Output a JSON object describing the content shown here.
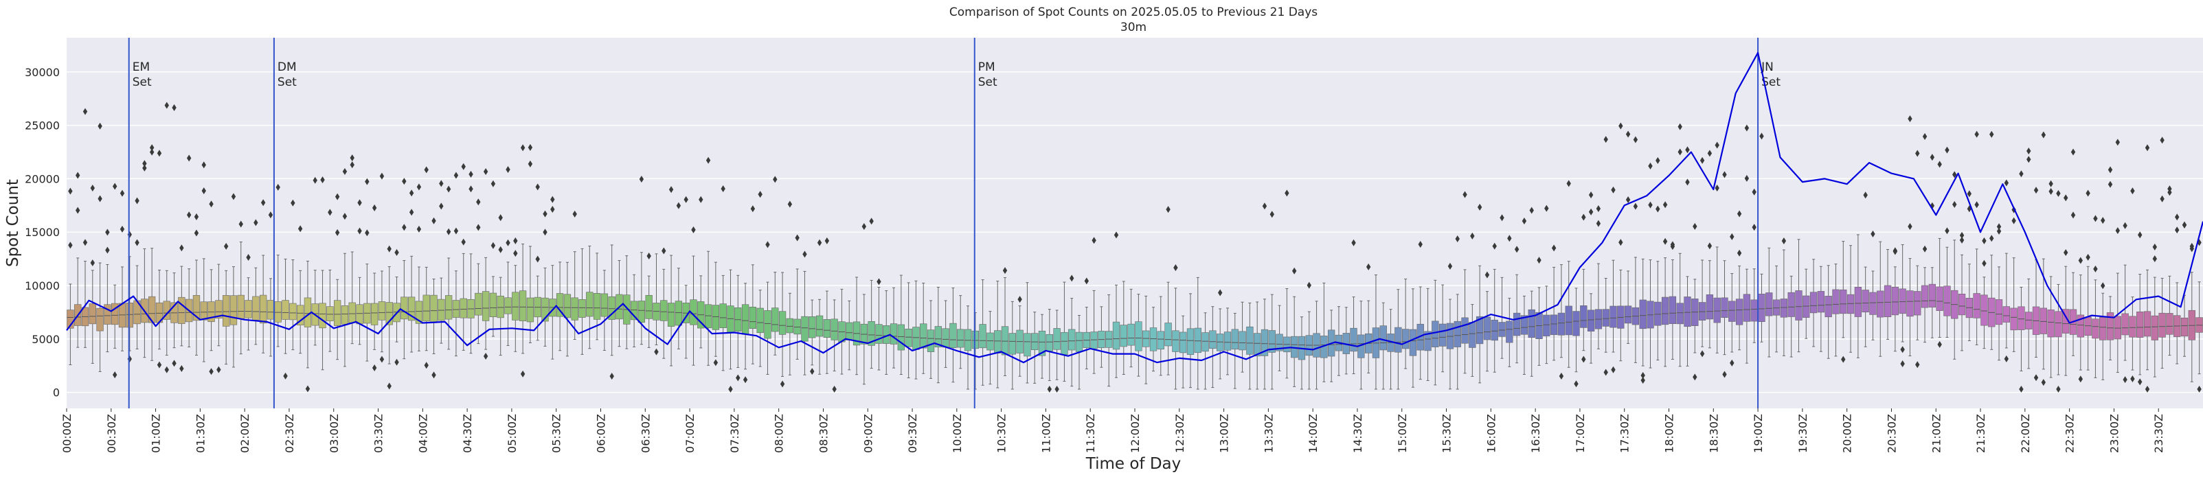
{
  "chart_data": {
    "type": "boxplot+line",
    "title": "Comparison of Spot Counts on 2025.05.05 to Previous 21 Days",
    "subtitle": "30m",
    "xlabel": "Time of Day",
    "ylabel": "Spot Count",
    "ylim": [
      -1500,
      33200
    ],
    "yticks": [
      0,
      5000,
      10000,
      15000,
      20000,
      25000,
      30000
    ],
    "xlim_hours": [
      0,
      24
    ],
    "xticks": [
      "00:00Z",
      "00:30Z",
      "01:00Z",
      "01:30Z",
      "02:00Z",
      "02:30Z",
      "03:00Z",
      "03:30Z",
      "04:00Z",
      "04:30Z",
      "05:00Z",
      "05:30Z",
      "06:00Z",
      "06:30Z",
      "07:00Z",
      "07:30Z",
      "08:00Z",
      "08:30Z",
      "09:00Z",
      "09:30Z",
      "10:00Z",
      "10:30Z",
      "11:00Z",
      "11:30Z",
      "12:00Z",
      "12:30Z",
      "13:00Z",
      "13:30Z",
      "14:00Z",
      "14:30Z",
      "15:00Z",
      "15:30Z",
      "16:00Z",
      "16:30Z",
      "17:00Z",
      "17:30Z",
      "18:00Z",
      "18:30Z",
      "19:00Z",
      "19:30Z",
      "20:00Z",
      "20:30Z",
      "21:00Z",
      "21:30Z",
      "22:00Z",
      "22:30Z",
      "23:00Z",
      "23:30Z"
    ],
    "grid": true,
    "legend": "none",
    "annotations": [
      {
        "hour": 0.7,
        "label1": "EM",
        "label2": "Set"
      },
      {
        "hour": 2.33,
        "label1": "DM",
        "label2": "Set"
      },
      {
        "hour": 10.2,
        "label1": "PM",
        "label2": "Set"
      },
      {
        "hour": 19.0,
        "label1": "JN",
        "label2": "Set"
      }
    ],
    "median_profile": {
      "hours": [
        0,
        1,
        2,
        3,
        4,
        5,
        6,
        7,
        8,
        9,
        10,
        11,
        12,
        13,
        14,
        15,
        16,
        17,
        18,
        19,
        20,
        21,
        22,
        23,
        24
      ],
      "values": [
        7000,
        7400,
        7600,
        7300,
        7600,
        8000,
        7900,
        7400,
        6300,
        5400,
        4900,
        4700,
        5100,
        4700,
        4400,
        4700,
        5700,
        6700,
        7400,
        7800,
        8300,
        8600,
        6800,
        6000,
        6300
      ]
    },
    "today_series": {
      "name": "2025.05.05",
      "color": "#0000dd",
      "hours": [
        0,
        0.25,
        0.5,
        0.75,
        1.0,
        1.25,
        1.5,
        1.75,
        2.0,
        2.25,
        2.5,
        2.75,
        3.0,
        3.25,
        3.5,
        3.75,
        4.0,
        4.25,
        4.5,
        4.75,
        5.0,
        5.25,
        5.5,
        5.75,
        6.0,
        6.25,
        6.5,
        6.75,
        7.0,
        7.25,
        7.5,
        7.75,
        8.0,
        8.25,
        8.5,
        8.75,
        9.0,
        9.25,
        9.5,
        9.75,
        10.0,
        10.25,
        10.5,
        10.75,
        11.0,
        11.25,
        11.5,
        11.75,
        12.0,
        12.25,
        12.5,
        12.75,
        13.0,
        13.25,
        13.5,
        13.75,
        14.0,
        14.25,
        14.5,
        14.75,
        15.0,
        15.25,
        15.5,
        15.75,
        16.0,
        16.25,
        16.5,
        16.75,
        17.0,
        17.25,
        17.5,
        17.75,
        18.0,
        18.25,
        18.5,
        18.75,
        19.0,
        19.25,
        19.5,
        19.75,
        20.0,
        20.25,
        20.5,
        20.75,
        21.0,
        21.25,
        21.5,
        21.75,
        22.0,
        22.25,
        22.5,
        22.75,
        23.0,
        23.25,
        23.5,
        23.75,
        24.0
      ],
      "values": [
        5800,
        8600,
        7600,
        9000,
        6200,
        8500,
        6800,
        7200,
        6800,
        6600,
        5900,
        7500,
        6000,
        6600,
        5500,
        7800,
        6500,
        6600,
        4400,
        5900,
        6000,
        5800,
        8100,
        5500,
        6400,
        8300,
        6000,
        4500,
        7600,
        5500,
        5600,
        5300,
        4200,
        4800,
        3700,
        5000,
        4600,
        5400,
        3900,
        4600,
        3900,
        3300,
        3800,
        2800,
        3900,
        3400,
        4100,
        3600,
        3600,
        2800,
        3200,
        3000,
        3800,
        3100,
        4000,
        4200,
        4000,
        4700,
        4300,
        5000,
        4500,
        5400,
        5800,
        6400,
        7300,
        6800,
        7200,
        8200,
        11700,
        14000,
        17500,
        18400,
        20300,
        22500,
        19000,
        28000,
        31800,
        22000,
        19700,
        20000,
        19500,
        21500,
        20500,
        20000,
        16600,
        20500,
        15000,
        19500,
        15000,
        10000,
        6500,
        7200,
        7000,
        8700,
        9000,
        8000,
        16000
      ]
    }
  }
}
